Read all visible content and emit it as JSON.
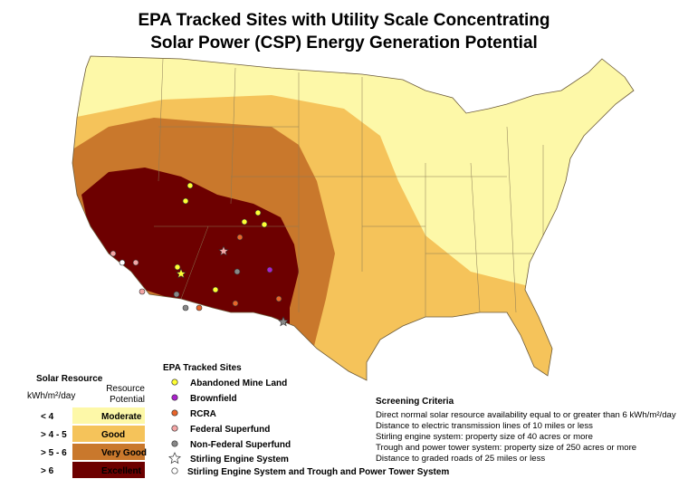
{
  "title": {
    "line1": "EPA Tracked Sites with Utility Scale Concentrating",
    "line2": "Solar Power (CSP) Energy Generation Potential"
  },
  "solar_legend": {
    "title": "Solar Resource",
    "unit": "kWh/m²/day",
    "potential_header": [
      "Resource",
      "Potential"
    ],
    "classes": [
      {
        "range": "< 4",
        "label": "Moderate"
      },
      {
        "range": "> 4 - 5",
        "label": "Good"
      },
      {
        "range": "> 5 - 6",
        "label": "Very Good"
      },
      {
        "range": "> 6",
        "label": "Excellent"
      }
    ]
  },
  "sites_legend": {
    "title": "EPA Tracked Sites",
    "items": [
      "Abandoned Mine Land",
      "Brownfield",
      "RCRA",
      "Federal Superfund",
      "Non-Federal Superfund",
      "Stirling Engine System",
      "Stirling Engine System and Trough and Power Tower System"
    ]
  },
  "screening": {
    "title": "Screening Criteria",
    "lines": [
      "Direct normal solar resource availability equal to or greater than 6 kWh/m²/day",
      "Distance to electric transmission lines of 10 miles or less",
      "Stirling engine system: property size of 40 acres or more",
      "Trough and power tower system: property size of 250 acres or more",
      "Distance to graded roads of 25 miles or less"
    ]
  }
}
